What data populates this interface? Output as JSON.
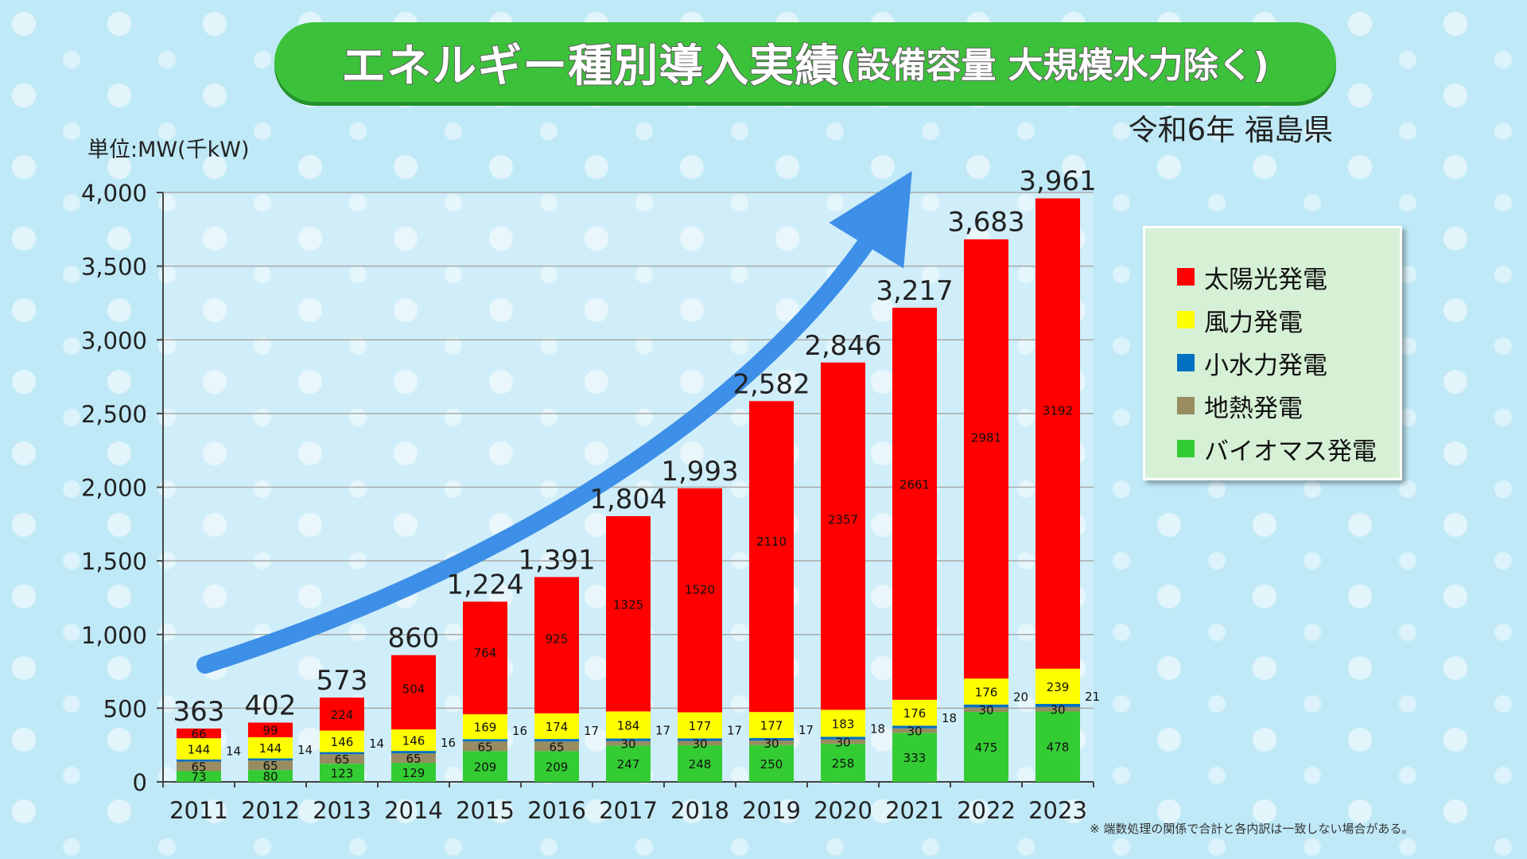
{
  "title": {
    "main": "エネルギー種別導入実績",
    "sub": "(設備容量 大規模水力除く)"
  },
  "subtitle": "令和6年 福島県",
  "unit_label": "単位:MW(千kW)",
  "footnote": "※ 端数処理の関係で合計と各内訳は一致しない場合がある。",
  "colors": {
    "solar": "#ff0000",
    "wind": "#ffff00",
    "small_hydro": "#0070c0",
    "geothermal": "#998c60",
    "biomass": "#33cc33",
    "arrow": "#3d8fe8"
  },
  "chart_data": {
    "type": "bar",
    "stacked": true,
    "categories": [
      "2011",
      "2012",
      "2013",
      "2014",
      "2015",
      "2016",
      "2017",
      "2018",
      "2019",
      "2020",
      "2021",
      "2022",
      "2023"
    ],
    "series": [
      {
        "name": "バイオマス発電",
        "key": "biomass",
        "values": [
          73,
          80,
          123,
          129,
          209,
          209,
          247,
          248,
          250,
          258,
          333,
          475,
          478
        ],
        "labels": [
          "73",
          "80",
          "123",
          "129",
          "209",
          "209",
          "247",
          "248",
          "250",
          "258",
          "333",
          "475",
          "478"
        ]
      },
      {
        "name": "地熱発電",
        "key": "geothermal",
        "values": [
          65,
          65,
          65,
          65,
          65,
          65,
          30,
          30,
          30,
          30,
          30,
          30,
          30
        ],
        "labels": [
          "65",
          "65",
          "65",
          "65",
          "65",
          "65",
          "30",
          "30",
          "30",
          "30",
          "30",
          "30",
          "30"
        ]
      },
      {
        "name": "小水力発電",
        "key": "small_hydro",
        "values": [
          14,
          14,
          14,
          16,
          16,
          17,
          17,
          17,
          17,
          18,
          18,
          20,
          21
        ],
        "labels": [
          "14",
          "14",
          "14",
          "16",
          "16",
          "17",
          "17",
          "17",
          "17",
          "18",
          "18",
          "20",
          "21"
        ]
      },
      {
        "name": "風力発電",
        "key": "wind",
        "values": [
          144,
          144,
          146,
          146,
          169,
          174,
          184,
          177,
          177,
          183,
          176,
          176,
          239
        ],
        "labels": [
          "144",
          "144",
          "146",
          "146",
          "169",
          "174",
          "184",
          "177",
          "177",
          "183",
          "176",
          "176",
          "239"
        ]
      },
      {
        "name": "太陽光発電",
        "key": "solar",
        "values": [
          66,
          99,
          224,
          504,
          764,
          925,
          1325,
          1520,
          2110,
          2357,
          2661,
          2981,
          3192
        ],
        "labels": [
          "66",
          "99",
          "224",
          "504",
          "764",
          "925",
          "1325",
          "1520",
          "2110",
          "2357",
          "2661",
          "2981",
          "3192"
        ]
      }
    ],
    "totals": [
      363,
      402,
      573,
      860,
      1224,
      1391,
      1804,
      1993,
      2582,
      2846,
      3217,
      3683,
      3961
    ],
    "total_labels": [
      "363",
      "402",
      "573",
      "860",
      "1,224",
      "1,391",
      "1,804",
      "1,993",
      "2,582",
      "2,846",
      "3,217",
      "3,683",
      "3,961"
    ],
    "yticks": [
      0,
      500,
      1000,
      1500,
      2000,
      2500,
      3000,
      3500,
      4000
    ],
    "ytick_labels": [
      "0",
      "500",
      "1,000",
      "1,500",
      "2,000",
      "2,500",
      "3,000",
      "3,500",
      "4,000"
    ],
    "ylim": [
      0,
      4000
    ],
    "grid": true,
    "legend_position": "right",
    "legend_order": [
      "solar",
      "wind",
      "small_hydro",
      "geothermal",
      "biomass"
    ],
    "trend_arrow": true
  }
}
